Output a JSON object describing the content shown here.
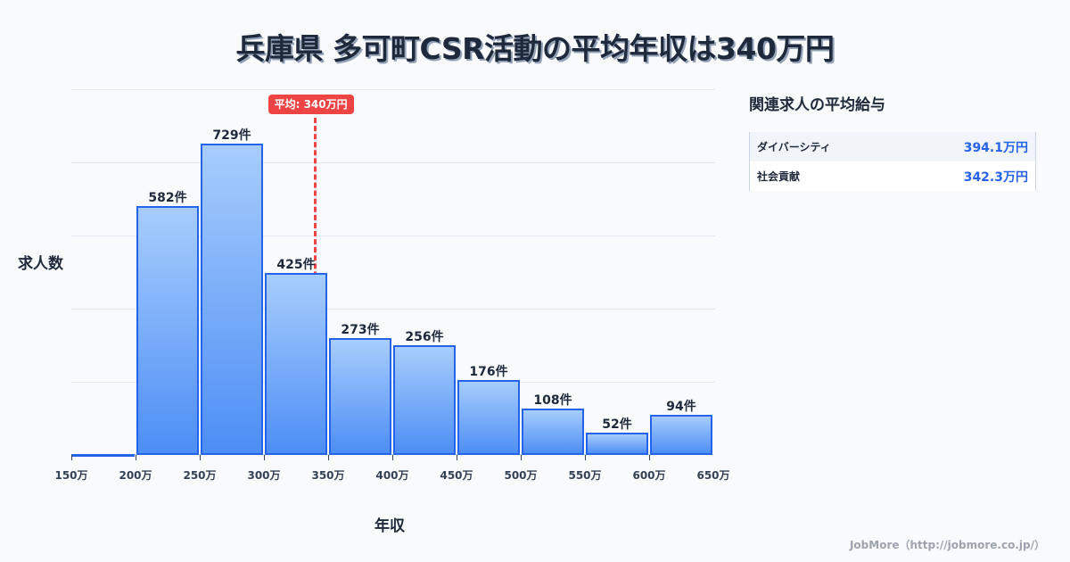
{
  "title": "兵庫県 多可町CSR活動の平均年収は340万円",
  "chart_data": {
    "type": "bar",
    "title": "兵庫県 多可町CSR活動の平均年収は340万円",
    "xlabel": "年収",
    "ylabel": "求人数",
    "categories": [
      "150-200万",
      "200-250万",
      "250-300万",
      "300-350万",
      "350-400万",
      "400-450万",
      "450-500万",
      "500-550万",
      "550-600万",
      "600-650万"
    ],
    "values": [
      3,
      582,
      729,
      425,
      273,
      256,
      176,
      108,
      52,
      94
    ],
    "value_labels": [
      "",
      "582件",
      "729件",
      "425件",
      "273件",
      "256件",
      "176件",
      "108件",
      "52件",
      "94件"
    ],
    "x_ticks": [
      "150万",
      "200万",
      "250万",
      "300万",
      "350万",
      "400万",
      "450万",
      "500万",
      "550万",
      "600万",
      "650万"
    ],
    "xlim": [
      150,
      650
    ],
    "ylim": [
      0,
      856
    ],
    "grid": true,
    "average": {
      "value": 340,
      "label": "平均: 340万円"
    },
    "colors": {
      "bar_fill_top": "#a7cdfc",
      "bar_fill_bottom": "#4d8ef5",
      "bar_border": "#2563eb",
      "average_line": "#ef4444"
    }
  },
  "related": {
    "title": "関連求人の平均給与",
    "items": [
      {
        "name": "ダイバーシティ",
        "value": "394.1万円"
      },
      {
        "name": "社会貢献",
        "value": "342.3万円"
      }
    ]
  },
  "footer": "JobMore（http://jobmore.co.jp/）"
}
